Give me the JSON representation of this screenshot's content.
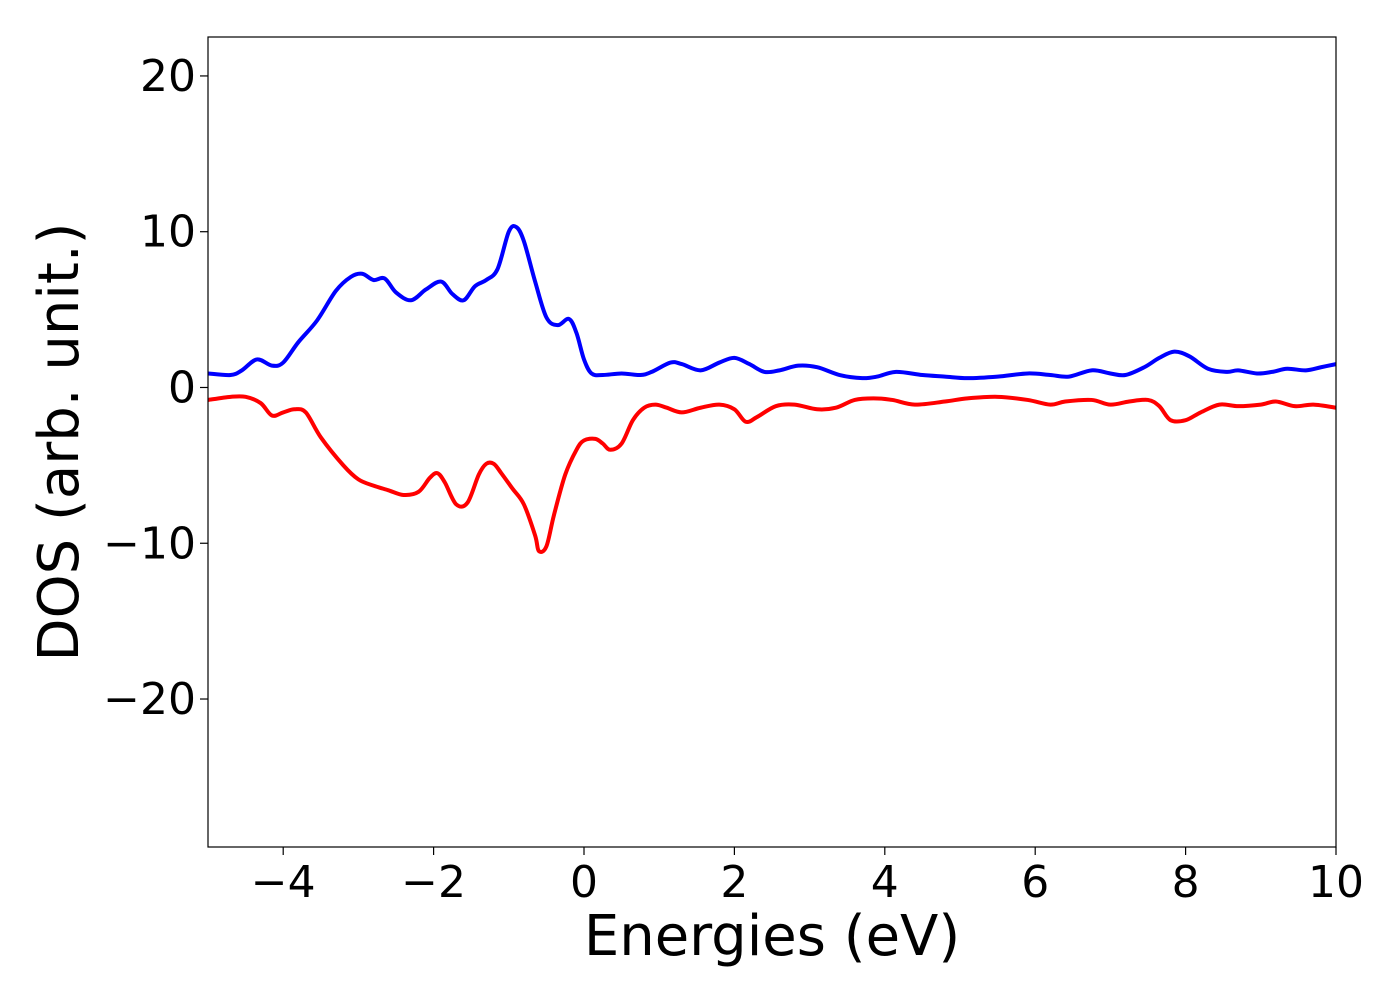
{
  "chart_data": {
    "type": "line",
    "title": "",
    "xlabel": "Energies (eV)",
    "ylabel": "DOS (arb. unit.)",
    "xlim": [
      -5,
      10
    ],
    "ylim": [
      -29.5,
      22.5
    ],
    "xticks": [
      -4,
      -2,
      0,
      2,
      4,
      6,
      8,
      10
    ],
    "xtick_labels": [
      "−4",
      "−2",
      "0",
      "2",
      "4",
      "6",
      "8",
      "10"
    ],
    "yticks": [
      20,
      10,
      0,
      -10,
      -20
    ],
    "ytick_labels": [
      "20",
      "10",
      "0",
      "−10",
      "−20"
    ],
    "grid": false,
    "legend": "none",
    "series": [
      {
        "color": "#0000ff",
        "x": [
          -5.0,
          -4.7,
          -4.55,
          -4.35,
          -4.15,
          -4.0,
          -3.8,
          -3.55,
          -3.3,
          -3.1,
          -2.95,
          -2.8,
          -2.65,
          -2.5,
          -2.3,
          -2.1,
          -1.9,
          -1.75,
          -1.6,
          -1.45,
          -1.3,
          -1.15,
          -1.0,
          -0.9,
          -0.8,
          -0.65,
          -0.5,
          -0.35,
          -0.2,
          -0.1,
          0.0,
          0.1,
          0.25,
          0.5,
          0.75,
          0.9,
          1.15,
          1.3,
          1.55,
          1.8,
          2.0,
          2.2,
          2.4,
          2.6,
          2.85,
          3.1,
          3.4,
          3.7,
          3.9,
          4.15,
          4.5,
          4.8,
          5.1,
          5.5,
          5.9,
          6.2,
          6.45,
          6.75,
          7.0,
          7.2,
          7.45,
          7.65,
          7.85,
          8.05,
          8.3,
          8.55,
          8.7,
          8.95,
          9.15,
          9.35,
          9.6,
          9.8,
          10.0
        ],
        "y": [
          0.9,
          0.8,
          1.1,
          1.8,
          1.4,
          1.6,
          2.9,
          4.3,
          6.2,
          7.1,
          7.3,
          6.9,
          7.0,
          6.1,
          5.6,
          6.3,
          6.8,
          6.0,
          5.6,
          6.5,
          6.9,
          7.6,
          10.0,
          10.3,
          9.4,
          6.8,
          4.5,
          4.0,
          4.4,
          3.5,
          1.8,
          0.9,
          0.8,
          0.9,
          0.8,
          1.0,
          1.6,
          1.5,
          1.1,
          1.6,
          1.9,
          1.5,
          1.0,
          1.1,
          1.4,
          1.3,
          0.8,
          0.6,
          0.7,
          1.0,
          0.8,
          0.7,
          0.6,
          0.7,
          0.9,
          0.8,
          0.7,
          1.1,
          0.9,
          0.8,
          1.3,
          1.9,
          2.3,
          2.0,
          1.2,
          1.0,
          1.1,
          0.9,
          1.0,
          1.2,
          1.1,
          1.3,
          1.5
        ]
      },
      {
        "color": "#ff0000",
        "x": [
          -5.0,
          -4.7,
          -4.5,
          -4.3,
          -4.15,
          -4.0,
          -3.85,
          -3.7,
          -3.5,
          -3.2,
          -3.0,
          -2.8,
          -2.6,
          -2.4,
          -2.2,
          -2.05,
          -1.95,
          -1.85,
          -1.7,
          -1.55,
          -1.4,
          -1.3,
          -1.2,
          -1.1,
          -0.95,
          -0.8,
          -0.65,
          -0.6,
          -0.5,
          -0.4,
          -0.25,
          -0.1,
          0.0,
          0.15,
          0.25,
          0.35,
          0.5,
          0.65,
          0.8,
          0.95,
          1.1,
          1.3,
          1.55,
          1.8,
          2.0,
          2.15,
          2.3,
          2.55,
          2.8,
          3.1,
          3.35,
          3.6,
          3.85,
          4.1,
          4.4,
          4.8,
          5.1,
          5.5,
          5.9,
          6.2,
          6.4,
          6.75,
          7.0,
          7.25,
          7.5,
          7.65,
          7.8,
          8.0,
          8.2,
          8.45,
          8.7,
          9.0,
          9.2,
          9.45,
          9.7,
          10.0
        ],
        "y": [
          -0.8,
          -0.6,
          -0.6,
          -1.0,
          -1.8,
          -1.6,
          -1.4,
          -1.6,
          -3.2,
          -5.0,
          -5.9,
          -6.3,
          -6.6,
          -6.9,
          -6.7,
          -5.8,
          -5.5,
          -6.1,
          -7.5,
          -7.4,
          -5.6,
          -4.9,
          -4.9,
          -5.5,
          -6.5,
          -7.5,
          -9.5,
          -10.5,
          -10.2,
          -8.2,
          -5.6,
          -4.0,
          -3.4,
          -3.3,
          -3.6,
          -4.0,
          -3.6,
          -2.1,
          -1.3,
          -1.1,
          -1.3,
          -1.6,
          -1.3,
          -1.1,
          -1.4,
          -2.2,
          -1.9,
          -1.2,
          -1.1,
          -1.4,
          -1.3,
          -0.8,
          -0.7,
          -0.8,
          -1.1,
          -0.9,
          -0.7,
          -0.6,
          -0.8,
          -1.1,
          -0.9,
          -0.8,
          -1.1,
          -0.9,
          -0.8,
          -1.2,
          -2.1,
          -2.1,
          -1.6,
          -1.1,
          -1.2,
          -1.1,
          -0.9,
          -1.2,
          -1.1,
          -1.3
        ]
      }
    ]
  }
}
